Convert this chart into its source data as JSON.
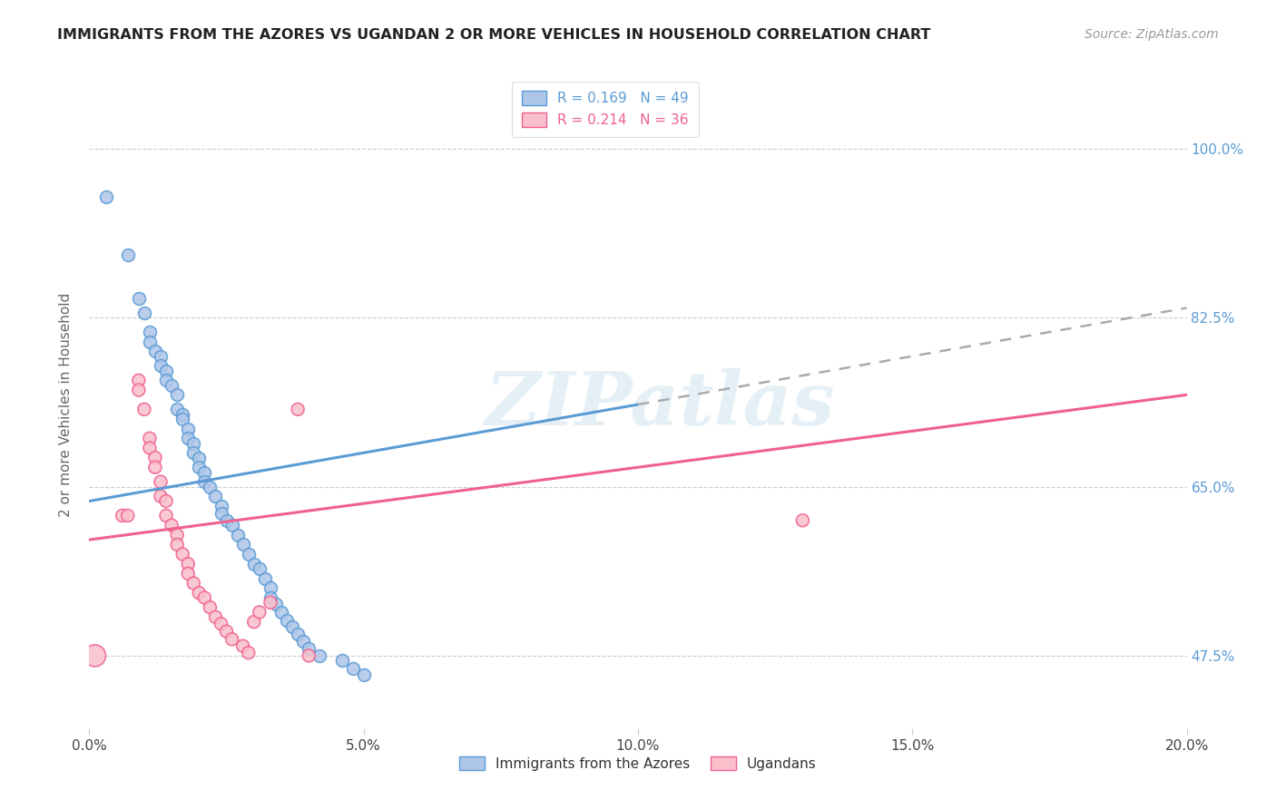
{
  "title": "IMMIGRANTS FROM THE AZORES VS UGANDAN 2 OR MORE VEHICLES IN HOUSEHOLD CORRELATION CHART",
  "source": "Source: ZipAtlas.com",
  "ylabel": "2 or more Vehicles in Household",
  "ylabel_ticks": [
    "47.5%",
    "65.0%",
    "82.5%",
    "100.0%"
  ],
  "ylabel_tick_vals": [
    0.475,
    0.65,
    0.825,
    1.0
  ],
  "xlabel_ticks": [
    "0.0%",
    "5.0%",
    "10.0%",
    "15.0%",
    "20.0%"
  ],
  "xlabel_tick_vals": [
    0.0,
    0.05,
    0.1,
    0.15,
    0.2
  ],
  "legend1_label": "R = 0.169   N = 49",
  "legend2_label": "R = 0.214   N = 36",
  "legend_bottom1": "Immigrants from the Azores",
  "legend_bottom2": "Ugandans",
  "blue_color": "#aec6e8",
  "pink_color": "#f9c0cb",
  "blue_line_color": "#5b9bd5",
  "pink_line_color": "#f06090",
  "blue_scatter": [
    [
      0.003,
      0.95
    ],
    [
      0.007,
      0.89
    ],
    [
      0.009,
      0.845
    ],
    [
      0.01,
      0.83
    ],
    [
      0.011,
      0.81
    ],
    [
      0.011,
      0.8
    ],
    [
      0.012,
      0.79
    ],
    [
      0.013,
      0.785
    ],
    [
      0.013,
      0.775
    ],
    [
      0.014,
      0.77
    ],
    [
      0.014,
      0.76
    ],
    [
      0.015,
      0.755
    ],
    [
      0.016,
      0.745
    ],
    [
      0.016,
      0.73
    ],
    [
      0.017,
      0.725
    ],
    [
      0.017,
      0.72
    ],
    [
      0.018,
      0.71
    ],
    [
      0.018,
      0.7
    ],
    [
      0.019,
      0.695
    ],
    [
      0.019,
      0.685
    ],
    [
      0.02,
      0.68
    ],
    [
      0.02,
      0.67
    ],
    [
      0.021,
      0.665
    ],
    [
      0.021,
      0.655
    ],
    [
      0.022,
      0.65
    ],
    [
      0.023,
      0.64
    ],
    [
      0.024,
      0.63
    ],
    [
      0.024,
      0.622
    ],
    [
      0.025,
      0.615
    ],
    [
      0.026,
      0.61
    ],
    [
      0.027,
      0.6
    ],
    [
      0.028,
      0.59
    ],
    [
      0.029,
      0.58
    ],
    [
      0.03,
      0.57
    ],
    [
      0.031,
      0.565
    ],
    [
      0.032,
      0.555
    ],
    [
      0.033,
      0.545
    ],
    [
      0.033,
      0.535
    ],
    [
      0.034,
      0.528
    ],
    [
      0.035,
      0.52
    ],
    [
      0.036,
      0.512
    ],
    [
      0.037,
      0.505
    ],
    [
      0.038,
      0.497
    ],
    [
      0.039,
      0.49
    ],
    [
      0.04,
      0.482
    ],
    [
      0.042,
      0.475
    ],
    [
      0.046,
      0.47
    ],
    [
      0.048,
      0.462
    ],
    [
      0.05,
      0.455
    ]
  ],
  "pink_scatter": [
    [
      0.001,
      0.475
    ],
    [
      0.006,
      0.62
    ],
    [
      0.007,
      0.62
    ],
    [
      0.009,
      0.76
    ],
    [
      0.009,
      0.75
    ],
    [
      0.01,
      0.73
    ],
    [
      0.011,
      0.7
    ],
    [
      0.011,
      0.69
    ],
    [
      0.012,
      0.68
    ],
    [
      0.012,
      0.67
    ],
    [
      0.013,
      0.655
    ],
    [
      0.013,
      0.64
    ],
    [
      0.014,
      0.635
    ],
    [
      0.014,
      0.62
    ],
    [
      0.015,
      0.61
    ],
    [
      0.016,
      0.6
    ],
    [
      0.016,
      0.59
    ],
    [
      0.017,
      0.58
    ],
    [
      0.018,
      0.57
    ],
    [
      0.018,
      0.56
    ],
    [
      0.019,
      0.55
    ],
    [
      0.02,
      0.54
    ],
    [
      0.021,
      0.535
    ],
    [
      0.022,
      0.525
    ],
    [
      0.023,
      0.515
    ],
    [
      0.024,
      0.508
    ],
    [
      0.025,
      0.5
    ],
    [
      0.026,
      0.492
    ],
    [
      0.028,
      0.485
    ],
    [
      0.029,
      0.478
    ],
    [
      0.03,
      0.51
    ],
    [
      0.031,
      0.52
    ],
    [
      0.033,
      0.53
    ],
    [
      0.038,
      0.73
    ],
    [
      0.04,
      0.475
    ],
    [
      0.13,
      0.615
    ]
  ],
  "R_blue": 0.169,
  "R_pink": 0.214,
  "N_blue": 49,
  "N_pink": 36,
  "watermark": "ZIPatlas",
  "xmin": 0.0,
  "xmax": 0.2,
  "ymin": 0.4,
  "ymax": 1.07,
  "blue_line_solid_end": 0.1,
  "blue_line_dashed_start": 0.1,
  "blue_line_dashed_end": 0.2
}
